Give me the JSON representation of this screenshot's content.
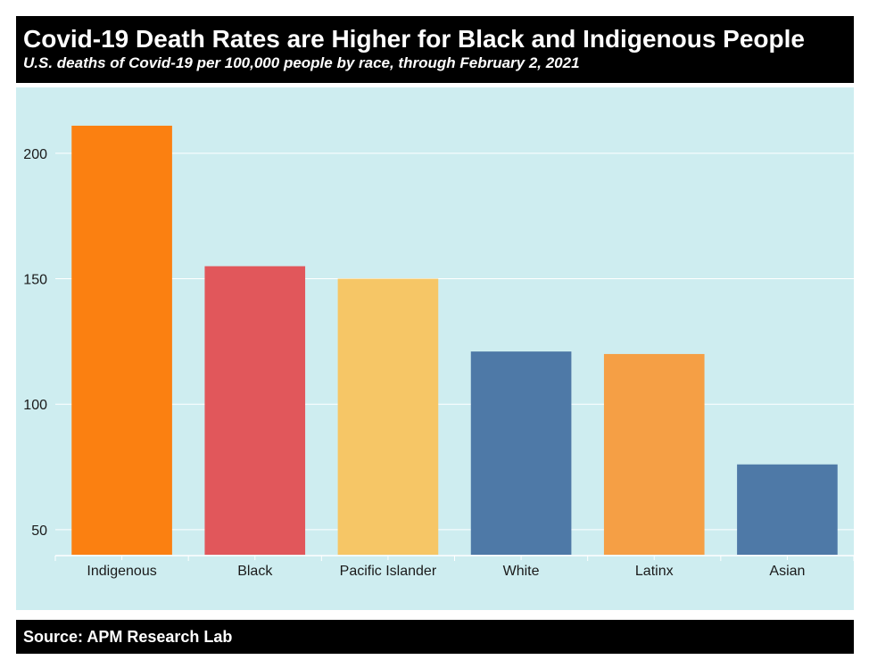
{
  "header": {
    "title": "Covid-19 Death Rates are Higher for Black and Indigenous People",
    "subtitle": "U.S. deaths of Covid-19 per 100,000 people by race, through February 2, 2021"
  },
  "footer": {
    "source": "Source: APM Research Lab"
  },
  "colors": {
    "panel_background": "#ceedf0",
    "header_background": "#000000",
    "gridline": "#ffffff"
  },
  "chart_data": {
    "type": "bar",
    "title": "Covid-19 Death Rates are Higher for Black and Indigenous People",
    "subtitle": "U.S. deaths of Covid-19 per 100,000 people by race, through February 2, 2021",
    "xlabel": "",
    "ylabel": "",
    "categories": [
      "Indigenous",
      "Black",
      "Pacific Islander",
      "White",
      "Latinx",
      "Asian"
    ],
    "values": [
      211,
      155,
      150,
      121,
      120,
      76
    ],
    "bar_colors": [
      "#fb8011",
      "#e1575b",
      "#f6c666",
      "#4e79a7",
      "#f59f45",
      "#4e79a7"
    ],
    "y_ticks": [
      50,
      100,
      150,
      200
    ],
    "ylim": [
      40,
      222
    ],
    "grid": true,
    "legend": "none"
  }
}
